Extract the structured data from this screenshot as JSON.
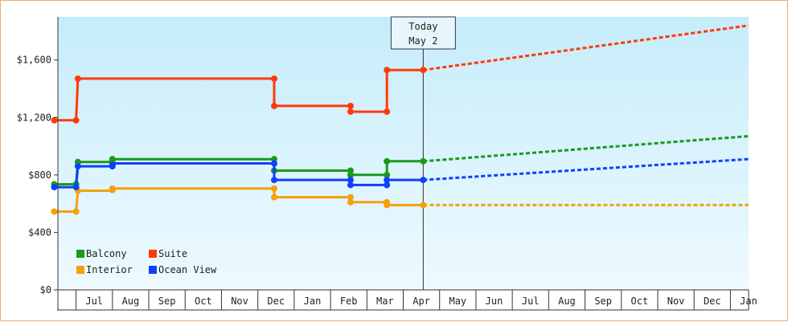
{
  "chart_data": {
    "type": "line",
    "title": "",
    "xlabel": "",
    "ylabel": "",
    "ylim": [
      0,
      1900
    ],
    "y_ticks": [
      {
        "value": 0,
        "label": "$0"
      },
      {
        "value": 400,
        "label": "$400"
      },
      {
        "value": 800,
        "label": "$800"
      },
      {
        "value": 1200,
        "label": "$1,200"
      },
      {
        "value": 1600,
        "label": "$1,600"
      }
    ],
    "x_ticks": [
      "Jul",
      "Aug",
      "Sep",
      "Oct",
      "Nov",
      "Dec",
      "Jan",
      "Feb",
      "Mar",
      "Apr",
      "May",
      "Jun",
      "Jul",
      "Aug",
      "Sep",
      "Oct",
      "Nov",
      "Dec",
      "Jan"
    ],
    "x_range_months": [
      0,
      19
    ],
    "today": {
      "label_line1": "Today",
      "label_line2": "May 2",
      "x": 10.05
    },
    "grid": false,
    "legend_placement": "bottom-left",
    "background": {
      "top": "#c6ecfa",
      "bottom": "#eefaff"
    },
    "series": [
      {
        "name": "Balcony",
        "color": "#1a9a1a",
        "points": [
          [
            -0.1,
            735
          ],
          [
            0.5,
            735
          ],
          [
            0.55,
            890
          ],
          [
            1.5,
            890
          ],
          [
            1.5,
            910
          ],
          [
            5.95,
            910
          ],
          [
            5.95,
            830
          ],
          [
            8.05,
            830
          ],
          [
            8.05,
            800
          ],
          [
            9.05,
            800
          ],
          [
            9.05,
            895
          ],
          [
            10.05,
            895
          ]
        ],
        "markers": [
          [
            -0.1,
            735
          ],
          [
            0.5,
            735
          ],
          [
            0.55,
            890
          ],
          [
            1.5,
            900
          ],
          [
            1.5,
            910
          ],
          [
            5.95,
            910
          ],
          [
            5.95,
            830
          ],
          [
            8.05,
            830
          ],
          [
            8.05,
            800
          ],
          [
            9.05,
            800
          ],
          [
            9.05,
            895
          ],
          [
            10.05,
            895
          ]
        ],
        "forecast": [
          [
            10.05,
            895
          ],
          [
            19,
            1070
          ]
        ]
      },
      {
        "name": "Suite",
        "color": "#ff3a0a",
        "points": [
          [
            -0.1,
            1180
          ],
          [
            0.5,
            1180
          ],
          [
            0.55,
            1470
          ],
          [
            5.95,
            1470
          ],
          [
            5.95,
            1280
          ],
          [
            8.05,
            1280
          ],
          [
            8.05,
            1240
          ],
          [
            9.05,
            1240
          ],
          [
            9.05,
            1530
          ],
          [
            10.05,
            1530
          ]
        ],
        "markers": [
          [
            -0.1,
            1180
          ],
          [
            0.5,
            1180
          ],
          [
            0.55,
            1470
          ],
          [
            5.95,
            1470
          ],
          [
            5.95,
            1280
          ],
          [
            8.05,
            1280
          ],
          [
            8.05,
            1240
          ],
          [
            9.05,
            1240
          ],
          [
            9.05,
            1530
          ],
          [
            10.05,
            1530
          ]
        ],
        "forecast": [
          [
            10.05,
            1530
          ],
          [
            19,
            1840
          ]
        ]
      },
      {
        "name": "Interior",
        "color": "#f5a00a",
        "points": [
          [
            -0.1,
            545
          ],
          [
            0.5,
            545
          ],
          [
            0.55,
            690
          ],
          [
            1.5,
            690
          ],
          [
            1.5,
            705
          ],
          [
            5.95,
            705
          ],
          [
            5.95,
            645
          ],
          [
            8.05,
            645
          ],
          [
            8.05,
            610
          ],
          [
            9.05,
            610
          ],
          [
            9.05,
            590
          ],
          [
            10.05,
            590
          ]
        ],
        "markers": [
          [
            -0.1,
            545
          ],
          [
            0.5,
            545
          ],
          [
            0.55,
            690
          ],
          [
            1.5,
            695
          ],
          [
            1.5,
            705
          ],
          [
            5.95,
            705
          ],
          [
            5.95,
            645
          ],
          [
            8.05,
            645
          ],
          [
            8.05,
            610
          ],
          [
            9.05,
            610
          ],
          [
            9.05,
            590
          ],
          [
            10.05,
            590
          ]
        ],
        "forecast": [
          [
            10.05,
            590
          ],
          [
            19,
            590
          ]
        ]
      },
      {
        "name": "Ocean View",
        "color": "#1040ff",
        "points": [
          [
            -0.1,
            715
          ],
          [
            0.5,
            715
          ],
          [
            0.55,
            860
          ],
          [
            1.5,
            860
          ],
          [
            1.5,
            880
          ],
          [
            5.95,
            880
          ],
          [
            5.95,
            765
          ],
          [
            8.05,
            765
          ],
          [
            8.05,
            730
          ],
          [
            9.05,
            730
          ],
          [
            9.05,
            765
          ],
          [
            10.05,
            765
          ]
        ],
        "markers": [
          [
            -0.1,
            715
          ],
          [
            0.5,
            715
          ],
          [
            0.55,
            860
          ],
          [
            1.5,
            860
          ],
          [
            1.5,
            870
          ],
          [
            5.95,
            880
          ],
          [
            5.95,
            765
          ],
          [
            8.05,
            765
          ],
          [
            8.05,
            730
          ],
          [
            9.05,
            730
          ],
          [
            9.05,
            765
          ],
          [
            10.05,
            765
          ]
        ],
        "forecast": [
          [
            10.05,
            765
          ],
          [
            19,
            910
          ]
        ]
      }
    ]
  }
}
